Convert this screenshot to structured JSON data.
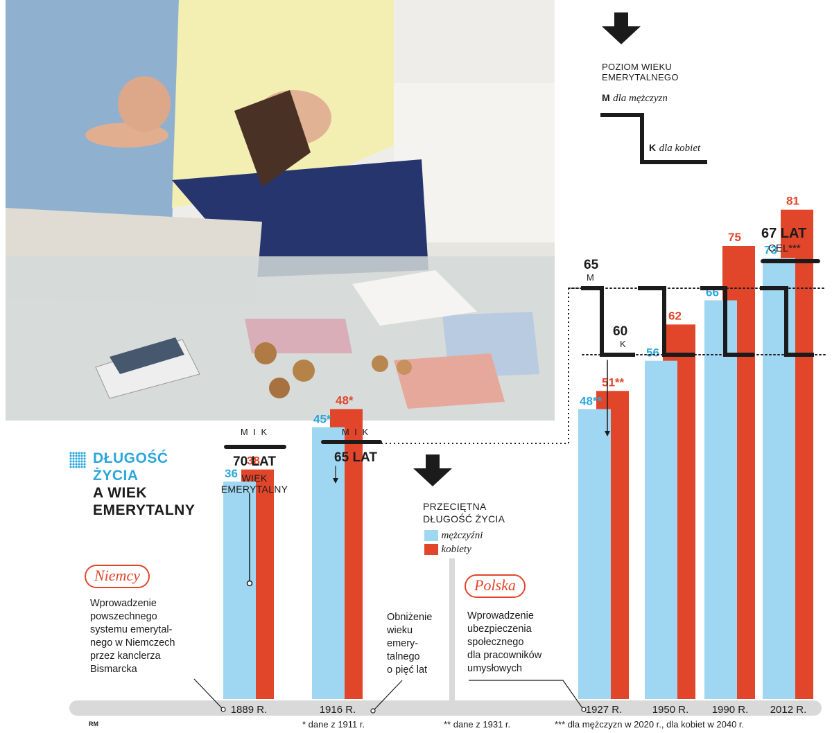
{
  "heading": {
    "line1": "DŁUGOŚĆ",
    "line2": "ŻYCIA",
    "line3": "A WIEK",
    "line4": "EMERYTALNY"
  },
  "legend_retirement": {
    "title_line1": "POZIOM WIEKU",
    "title_line2": "EMERYTALNEGO",
    "m_key": "M",
    "m_label": "dla mężczyzn",
    "k_key": "K",
    "k_label": "dla kobiet"
  },
  "legend_life": {
    "title_line1": "PRZECIĘTNA",
    "title_line2": "DŁUGOŚĆ ŻYCIA",
    "men": "mężczyźni",
    "women": "kobiety"
  },
  "countries": {
    "germany": "Niemcy",
    "poland": "Polska"
  },
  "notes": {
    "germany_intro": [
      "Wprowadzenie",
      "powszechnego",
      "systemu emerytal-",
      "nego w Niemczech",
      "przez kanclerza",
      "Bismarcka"
    ],
    "germany_lower": [
      "Obniżenie",
      "wieku",
      "emery-",
      "talnego",
      "o pięć lat"
    ],
    "poland_intro": [
      "Wprowadzenie",
      "ubezpieczenia",
      "społecznego",
      "dla pracowników",
      "umysłowych"
    ]
  },
  "retirement_marks": {
    "mk_label": "M I K",
    "r1889_value": "70 LAT",
    "r1889_sub1": "WIEK",
    "r1889_sub2": "EMERYTALNY",
    "r1916_value": "65 LAT",
    "m65": "65",
    "m_letter": "M",
    "k60": "60",
    "k_letter": "K",
    "goal_value": "67 LAT",
    "goal_label": "CEL***"
  },
  "footnotes": {
    "f1": "* dane z 1911 r.",
    "f2": "** dane z 1931 r.",
    "f3": "*** dla mężczyzn w 2020 r., dla kobiet w 2040 r.",
    "credit": "RM"
  },
  "colors": {
    "men": "#9fd6f1",
    "women": "#e1452a",
    "men_text": "#2aa7dc",
    "women_text": "#e1452a",
    "line": "#1b1b1b"
  },
  "chart_data": {
    "type": "bar",
    "categories": [
      "1889 R.",
      "1916 R.",
      "1927 R.",
      "1950 R.",
      "1990 R.",
      "2012 R."
    ],
    "series": [
      {
        "name": "mężczyźni",
        "values": [
          36,
          45,
          48,
          56,
          66,
          73
        ],
        "labels": [
          "36",
          "45*",
          "48**",
          "56",
          "66",
          "73"
        ]
      },
      {
        "name": "kobiety",
        "values": [
          38,
          48,
          51,
          62,
          75,
          81
        ],
        "labels": [
          "38",
          "48*",
          "51**",
          "62",
          "75",
          "81"
        ]
      }
    ],
    "title": "DŁUGOŚĆ ŻYCIA A WIEK EMERYTALNY",
    "xlabel": "",
    "ylabel": "",
    "grid": false
  }
}
